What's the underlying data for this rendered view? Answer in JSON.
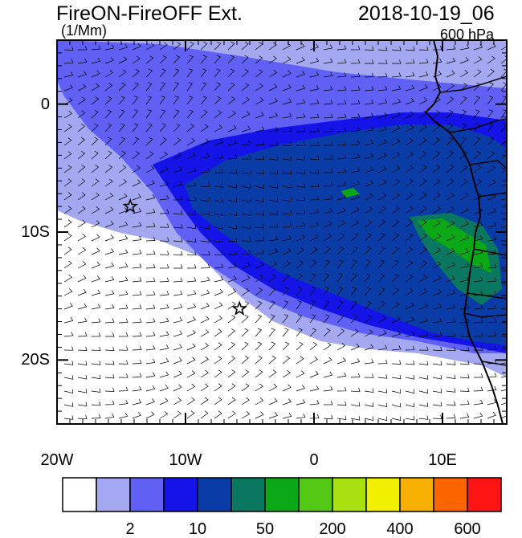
{
  "header": {
    "title": "FireON-FireOFF Ext.",
    "units": "(1/Mm)",
    "datetime": "2018-10-19_06",
    "level": "600 hPa"
  },
  "axes": {
    "lat_ticks": [
      {
        "value": 0,
        "label": "0"
      },
      {
        "value": -10,
        "label": "10S"
      },
      {
        "value": -20,
        "label": "20S"
      }
    ],
    "lon_ticks": [
      {
        "value": -20,
        "label": "20W"
      },
      {
        "value": -10,
        "label": "10W"
      },
      {
        "value": 0,
        "label": "0"
      },
      {
        "value": 10,
        "label": "10E"
      }
    ],
    "lon_range": [
      -20,
      15
    ],
    "lat_range": [
      -25,
      5
    ]
  },
  "markers": [
    {
      "name": "star-marker-west",
      "lon": -14.3,
      "lat": -8.0
    },
    {
      "name": "star-marker-central",
      "lon": -5.8,
      "lat": -16.0
    }
  ],
  "colorbar": {
    "colors": [
      "#ffffff",
      "#a4a8f0",
      "#6060f4",
      "#1414e8",
      "#0a3ca8",
      "#0a7860",
      "#0aa814",
      "#52c814",
      "#a8e010",
      "#f0f000",
      "#f8b000",
      "#fc6400",
      "#ff1414"
    ],
    "labels": [
      {
        "text": "2",
        "after_box": 1
      },
      {
        "text": "10",
        "after_box": 3
      },
      {
        "text": "50",
        "after_box": 5
      },
      {
        "text": "200",
        "after_box": 7
      },
      {
        "text": "400",
        "after_box": 9
      },
      {
        "text": "600",
        "after_box": 11
      }
    ]
  },
  "field_colors": {
    "ocean": "#ffffff",
    "light": "#a4a8f0",
    "medium": "#6060f4",
    "strong": "#1414e8",
    "dense": "#0a3ca8",
    "teal": "#0a7860",
    "green": "#0aa814",
    "wind_barb": "#000000"
  }
}
